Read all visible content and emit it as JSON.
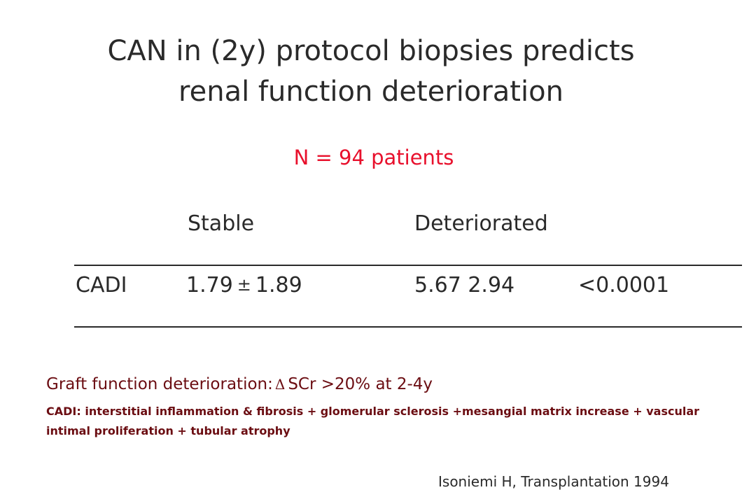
{
  "title": {
    "line1": "CAN in (2y) protocol biopsies predicts",
    "line2": "renal function deterioration"
  },
  "subtitle": "N = 94 patients",
  "table": {
    "headers": {
      "stable": "Stable",
      "deteriorated": "Deteriorated"
    },
    "row": {
      "label": "CADI",
      "stable_mean": "1.79",
      "plus_minus": "±",
      "stable_sd": "1.89",
      "deteriorated_value": "5.67 2.94",
      "p_value": "<0.0001"
    }
  },
  "definition": {
    "main_prefix": "Graft function deterioration:",
    "delta_symbol": "Δ",
    "main_suffix": "SCr >20% at 2-4y",
    "cadi_text": "CADI: interstitial inflammation & fibrosis + glomerular sclerosis +mesangial matrix increase + vascular intimal proliferation + tubular atrophy"
  },
  "citation": "Isoniemi H, Transplantation 1994",
  "colors": {
    "text": "#2a2a2a",
    "highlight_red": "#e8102c",
    "definition_dark_red": "#6b0d12",
    "background": "#ffffff"
  }
}
